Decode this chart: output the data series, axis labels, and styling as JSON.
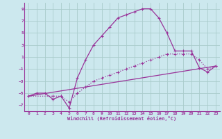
{
  "xlabel": "Windchill (Refroidissement éolien,°C)",
  "background_color": "#cce8ee",
  "line_color": "#993399",
  "grid_color": "#aacccc",
  "xlim": [
    -0.5,
    23.5
  ],
  "ylim": [
    -8,
    10
  ],
  "yticks": [
    -7,
    -5,
    -3,
    -1,
    1,
    3,
    5,
    7,
    9
  ],
  "xticks": [
    0,
    1,
    2,
    3,
    4,
    5,
    6,
    7,
    8,
    9,
    10,
    11,
    12,
    13,
    14,
    15,
    16,
    17,
    18,
    19,
    20,
    21,
    22,
    23
  ],
  "line1_x": [
    0,
    1,
    2,
    3,
    4,
    5,
    6,
    7,
    8,
    9,
    10,
    11,
    12,
    13,
    14,
    15,
    16,
    17,
    18,
    19,
    20,
    21,
    22,
    23
  ],
  "line1_y": [
    -5.5,
    -5.0,
    -5.0,
    -6.0,
    -5.5,
    -7.5,
    -2.5,
    0.5,
    3.0,
    4.5,
    6.0,
    7.5,
    8.0,
    8.5,
    9.0,
    9.0,
    7.5,
    5.0,
    2.0,
    2.0,
    2.0,
    -0.8,
    -1.5,
    -0.5
  ],
  "line2_x": [
    0,
    3,
    4,
    5,
    6,
    7,
    8,
    9,
    10,
    11,
    12,
    13,
    14,
    15,
    16,
    17,
    18,
    19,
    20,
    21,
    22,
    23
  ],
  "line2_y": [
    -5.5,
    -5.5,
    -5.5,
    -6.5,
    -5.0,
    -4.0,
    -3.0,
    -2.5,
    -2.0,
    -1.5,
    -1.0,
    -0.5,
    0.0,
    0.5,
    1.0,
    1.5,
    1.5,
    1.5,
    1.5,
    0.5,
    -1.0,
    -0.5
  ],
  "line3_x": [
    0,
    23
  ],
  "line3_y": [
    -5.5,
    -0.5
  ]
}
